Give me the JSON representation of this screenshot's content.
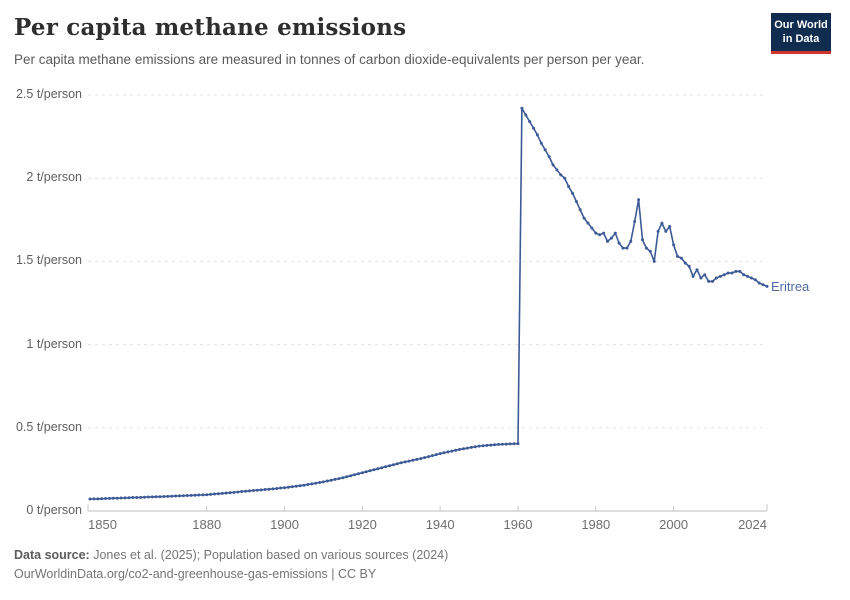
{
  "header": {
    "title": "Per capita methane emissions",
    "subtitle": "Per capita methane emissions are measured in tonnes of carbon dioxide-equivalents per person per year.",
    "logo_line1": "Our World",
    "logo_line2": "in Data"
  },
  "footer": {
    "source_label": "Data source:",
    "source_text": " Jones et al. (2025); Population based on various sources (2024)",
    "url_line": "OurWorldinData.org/co2-and-greenhouse-gas-emissions | CC BY"
  },
  "colors": {
    "line": "#3d5a96",
    "entity_label": "#4d6ba3",
    "grid": "#e2e2e2",
    "axis": "#bdbdbd",
    "tick": "#c9c9c9",
    "logo_bg": "#102d50",
    "logo_stripe": "#d0342c"
  },
  "chart_data": {
    "type": "line",
    "title": "Per capita methane emissions",
    "entity": "Eritrea",
    "unit": "t/person",
    "xlabel": "",
    "ylabel": "t/person",
    "xlim": [
      1850,
      2024
    ],
    "ylim": [
      0,
      2.5
    ],
    "grid": "horizontal dashed",
    "legend_position": "end-of-line label",
    "x_ticks": [
      1850,
      1880,
      1900,
      1920,
      1940,
      1960,
      1980,
      2000,
      2024
    ],
    "y_ticks": [
      {
        "value": 0,
        "label": "0 t/person"
      },
      {
        "value": 0.5,
        "label": "0.5 t/person"
      },
      {
        "value": 1,
        "label": "1 t/person"
      },
      {
        "value": 1.5,
        "label": "1.5 t/person"
      },
      {
        "value": 2,
        "label": "2 t/person"
      },
      {
        "value": 2.5,
        "label": "2.5 t/person"
      }
    ],
    "years": {
      "start": 1850,
      "end": 2024,
      "step": 1
    },
    "series": [
      {
        "name": "Eritrea",
        "values": [
          0.072,
          0.073,
          0.073,
          0.074,
          0.075,
          0.076,
          0.077,
          0.077,
          0.078,
          0.079,
          0.08,
          0.081,
          0.081,
          0.082,
          0.083,
          0.084,
          0.085,
          0.086,
          0.086,
          0.087,
          0.088,
          0.089,
          0.09,
          0.091,
          0.092,
          0.093,
          0.094,
          0.095,
          0.096,
          0.097,
          0.098,
          0.1,
          0.102,
          0.104,
          0.106,
          0.108,
          0.11,
          0.112,
          0.114,
          0.117,
          0.119,
          0.121,
          0.123,
          0.125,
          0.127,
          0.129,
          0.131,
          0.133,
          0.135,
          0.138,
          0.14,
          0.143,
          0.146,
          0.149,
          0.152,
          0.155,
          0.159,
          0.163,
          0.167,
          0.171,
          0.175,
          0.18,
          0.185,
          0.19,
          0.195,
          0.2,
          0.206,
          0.212,
          0.218,
          0.224,
          0.23,
          0.236,
          0.242,
          0.248,
          0.254,
          0.26,
          0.266,
          0.272,
          0.278,
          0.284,
          0.29,
          0.295,
          0.3,
          0.305,
          0.31,
          0.315,
          0.321,
          0.327,
          0.333,
          0.339,
          0.345,
          0.35,
          0.355,
          0.36,
          0.365,
          0.37,
          0.374,
          0.378,
          0.382,
          0.386,
          0.39,
          0.392,
          0.394,
          0.396,
          0.398,
          0.4,
          0.401,
          0.402,
          0.403,
          0.404,
          0.405,
          2.42,
          2.38,
          2.34,
          2.3,
          2.26,
          2.21,
          2.17,
          2.13,
          2.08,
          2.05,
          2.02,
          2.0,
          1.95,
          1.91,
          1.86,
          1.81,
          1.76,
          1.73,
          1.7,
          1.67,
          1.66,
          1.67,
          1.62,
          1.64,
          1.67,
          1.61,
          1.58,
          1.58,
          1.62,
          1.74,
          1.87,
          1.63,
          1.58,
          1.56,
          1.5,
          1.68,
          1.73,
          1.68,
          1.71,
          1.6,
          1.53,
          1.52,
          1.49,
          1.47,
          1.41,
          1.45,
          1.4,
          1.42,
          1.38,
          1.38,
          1.4,
          1.41,
          1.42,
          1.43,
          1.43,
          1.44,
          1.44,
          1.42,
          1.41,
          1.4,
          1.39,
          1.37,
          1.36,
          1.35
        ]
      }
    ]
  }
}
